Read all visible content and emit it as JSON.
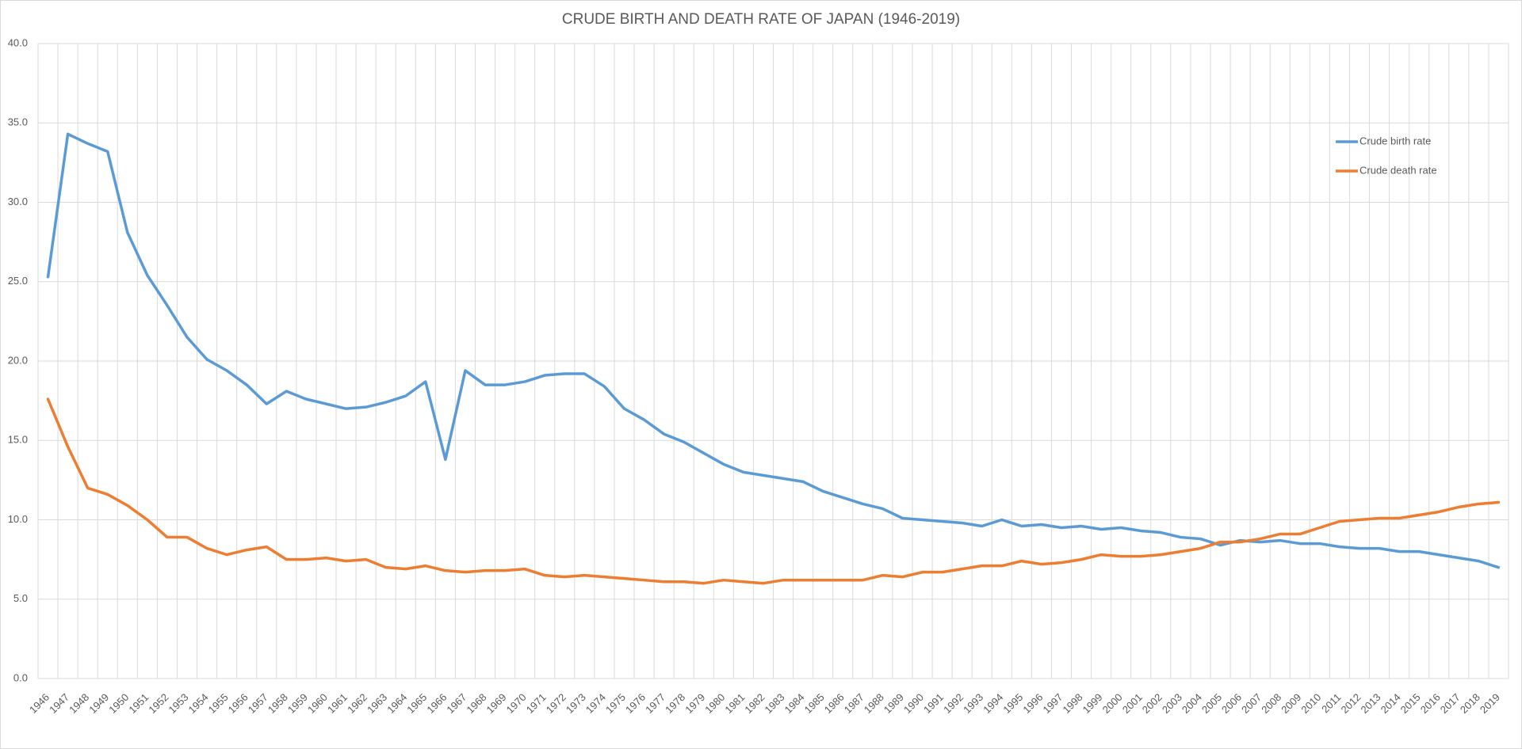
{
  "chart_data": {
    "type": "line",
    "title": "CRUDE BIRTH AND DEATH RATE OF JAPAN (1946-2019)",
    "categories": [
      "1946",
      "1947",
      "1948",
      "1949",
      "1950",
      "1951",
      "1952",
      "1953",
      "1954",
      "1955",
      "1956",
      "1957",
      "1958",
      "1959",
      "1960",
      "1961",
      "1962",
      "1963",
      "1964",
      "1965",
      "1966",
      "1967",
      "1968",
      "1969",
      "1970",
      "1971",
      "1972",
      "1973",
      "1974",
      "1975",
      "1976",
      "1977",
      "1978",
      "1979",
      "1980",
      "1981",
      "1982",
      "1983",
      "1984",
      "1985",
      "1986",
      "1987",
      "1988",
      "1989",
      "1990",
      "1991",
      "1992",
      "1993",
      "1994",
      "1995",
      "1996",
      "1997",
      "1998",
      "1999",
      "2000",
      "2001",
      "2002",
      "2003",
      "2004",
      "2005",
      "2006",
      "2007",
      "2008",
      "2009",
      "2010",
      "2011",
      "2012",
      "2013",
      "2014",
      "2015",
      "2016",
      "2017",
      "2018",
      "2019"
    ],
    "series": [
      {
        "name": "Crude birth rate",
        "color": "#5b9bd5",
        "values": [
          25.3,
          34.3,
          33.7,
          33.2,
          28.1,
          25.4,
          23.5,
          21.5,
          20.1,
          19.4,
          18.5,
          17.3,
          18.1,
          17.6,
          17.3,
          17.0,
          17.1,
          17.4,
          17.8,
          18.7,
          13.8,
          19.4,
          18.5,
          18.5,
          18.7,
          19.1,
          19.2,
          19.2,
          18.4,
          17.0,
          16.3,
          15.4,
          14.9,
          14.2,
          13.5,
          13.0,
          12.8,
          12.6,
          12.4,
          11.8,
          11.4,
          11.0,
          10.7,
          10.1,
          10.0,
          9.9,
          9.8,
          9.6,
          10.0,
          9.6,
          9.7,
          9.5,
          9.6,
          9.4,
          9.5,
          9.3,
          9.2,
          8.9,
          8.8,
          8.4,
          8.7,
          8.6,
          8.7,
          8.5,
          8.5,
          8.3,
          8.2,
          8.2,
          8.0,
          8.0,
          7.8,
          7.6,
          7.4,
          7.0
        ]
      },
      {
        "name": "Crude death rate",
        "color": "#ed7d31",
        "values": [
          17.6,
          14.6,
          12.0,
          11.6,
          10.9,
          10.0,
          8.9,
          8.9,
          8.2,
          7.8,
          8.1,
          8.3,
          7.5,
          7.5,
          7.6,
          7.4,
          7.5,
          7.0,
          6.9,
          7.1,
          6.8,
          6.7,
          6.8,
          6.8,
          6.9,
          6.5,
          6.4,
          6.5,
          6.4,
          6.3,
          6.2,
          6.1,
          6.1,
          6.0,
          6.2,
          6.1,
          6.0,
          6.2,
          6.2,
          6.2,
          6.2,
          6.2,
          6.5,
          6.4,
          6.7,
          6.7,
          6.9,
          7.1,
          7.1,
          7.4,
          7.2,
          7.3,
          7.5,
          7.8,
          7.7,
          7.7,
          7.8,
          8.0,
          8.2,
          8.6,
          8.6,
          8.8,
          9.1,
          9.1,
          9.5,
          9.9,
          10.0,
          10.1,
          10.1,
          10.3,
          10.5,
          10.8,
          11.0,
          11.1
        ]
      }
    ],
    "ylim": [
      0,
      40
    ],
    "yticks": [
      {
        "value": 0,
        "label": "0.0"
      },
      {
        "value": 5,
        "label": "5.0"
      },
      {
        "value": 10,
        "label": "10.0"
      },
      {
        "value": 15,
        "label": "15.0"
      },
      {
        "value": 20,
        "label": "20.0"
      },
      {
        "value": 25,
        "label": "25.0"
      },
      {
        "value": 30,
        "label": "30.0"
      },
      {
        "value": 35,
        "label": "35.0"
      },
      {
        "value": 40,
        "label": "40.0"
      }
    ],
    "grid": true,
    "legend_position": "right"
  }
}
